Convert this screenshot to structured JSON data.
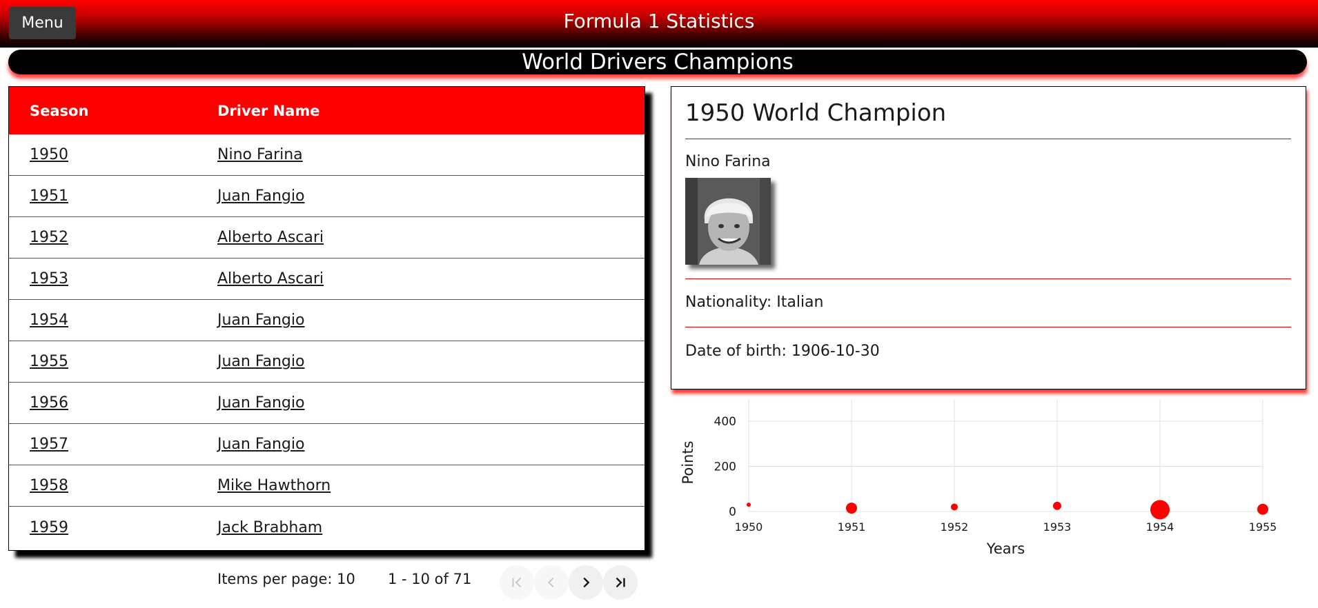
{
  "header": {
    "menu_label": "Menu",
    "title": "Formula 1 Statistics"
  },
  "page_title": "World Drivers Champions",
  "table": {
    "columns": [
      "Season",
      "Driver Name"
    ],
    "rows": [
      {
        "season": "1950",
        "driver": "Nino Farina"
      },
      {
        "season": "1951",
        "driver": "Juan Fangio"
      },
      {
        "season": "1952",
        "driver": "Alberto Ascari"
      },
      {
        "season": "1953",
        "driver": "Alberto Ascari"
      },
      {
        "season": "1954",
        "driver": "Juan Fangio"
      },
      {
        "season": "1955",
        "driver": "Juan Fangio"
      },
      {
        "season": "1956",
        "driver": "Juan Fangio"
      },
      {
        "season": "1957",
        "driver": "Juan Fangio"
      },
      {
        "season": "1958",
        "driver": "Mike Hawthorn"
      },
      {
        "season": "1959",
        "driver": "Jack Brabham"
      }
    ]
  },
  "paginator": {
    "items_per_page_label": "Items per page: 10",
    "range_label": "1 - 10 of 71",
    "buttons": [
      "first-page-icon",
      "prev-page-icon",
      "next-page-icon",
      "last-page-icon"
    ]
  },
  "detail": {
    "title": "1950 World Champion",
    "driver": "Nino Farina",
    "nationality": "Nationality: Italian",
    "dob": "Date of birth: 1906-10-30"
  },
  "chart_data": {
    "type": "scatter",
    "xlabel": "Years",
    "ylabel": "Points",
    "x_ticks": [
      "1950",
      "1951",
      "1952",
      "1953",
      "1954",
      "1955"
    ],
    "y_ticks": [
      "0",
      "200",
      "400"
    ],
    "ylim": [
      0,
      450
    ],
    "grid": true,
    "color": "#ff0000",
    "points": [
      {
        "x": "1950",
        "y": 30,
        "size": 3
      },
      {
        "x": "1951",
        "y": 15,
        "size": 8
      },
      {
        "x": "1952",
        "y": 20,
        "size": 5
      },
      {
        "x": "1953",
        "y": 25,
        "size": 6
      },
      {
        "x": "1954",
        "y": 8,
        "size": 14
      },
      {
        "x": "1955",
        "y": 10,
        "size": 8
      }
    ]
  },
  "colors": {
    "accent": "#ff0000",
    "banner": "#000000",
    "menu": "#3a3a3a"
  }
}
